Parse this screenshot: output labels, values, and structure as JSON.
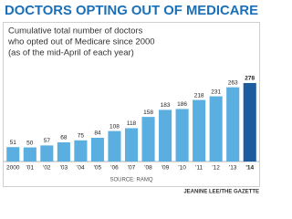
{
  "chart_data": {
    "type": "bar",
    "title": "DOCTORS OPTING OUT OF MEDICARE",
    "subtitle": [
      "Cumulative total number of doctors",
      "who opted out of Medicare since 2000",
      "(as of the mid-April of each year)"
    ],
    "categories": [
      "2000",
      "'01",
      "'02",
      "'03",
      "'04",
      "'05",
      "'06",
      "'07",
      "'08",
      "'09",
      "'10",
      "'11",
      "'12",
      "'13",
      "'14"
    ],
    "values": [
      51,
      50,
      57,
      68,
      75,
      84,
      108,
      118,
      158,
      183,
      186,
      218,
      231,
      263,
      278
    ],
    "colors": [
      "#5aaee0",
      "#5aaee0",
      "#5aaee0",
      "#5aaee0",
      "#5aaee0",
      "#5aaee0",
      "#5aaee0",
      "#5aaee0",
      "#5aaee0",
      "#5aaee0",
      "#5aaee0",
      "#5aaee0",
      "#5aaee0",
      "#5aaee0",
      "#1d5c9e"
    ],
    "source": "SOURCE: RAMQ",
    "credit": "JEANINE LEE/THE GAZETTE"
  }
}
